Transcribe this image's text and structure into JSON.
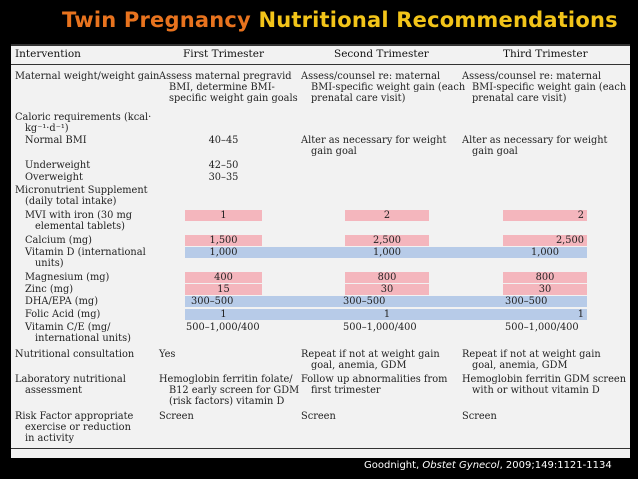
{
  "slide": {
    "title_part1": "Twin Pregnancy",
    "title_part2": "Nutritional Recommendations",
    "citation_author": "Goodnight,",
    "citation_journal": "Obstet Gynecol",
    "citation_ref": ", 2009;149:1121-1134"
  },
  "table": {
    "headers": [
      "Intervention",
      "First Trimester",
      "Second Trimester",
      "Third Trimester"
    ],
    "cells": {
      "mw_i1": "Maternal weight/weight gain",
      "mw_f1": "Assess maternal pregravid",
      "mw_f2": "BMI, determine BMI-",
      "mw_f3": "specific weight gain goals",
      "mw_s1": "Assess/counsel re: maternal",
      "mw_s2": "BMI-specific weight gain (each",
      "mw_s3": "prenatal care visit)",
      "mw_t1": "Assess/counsel re: maternal",
      "mw_t2": "BMI-specific weight gain (each",
      "mw_t3": "prenatal care visit)",
      "cr_i1": "Caloric requirements (kcal·",
      "cr_i2": "kg⁻¹·d⁻¹)",
      "nb_i": "Normal BMI",
      "nb_f": "40–45",
      "nb_s1": "Alter as necessary for weight",
      "nb_s2": "gain goal",
      "nb_t1": "Alter as necessary for weight",
      "nb_t2": "gain goal",
      "uw_i": "Underweight",
      "uw_f": "42–50",
      "ow_i": "Overweight",
      "ow_f": "30–35",
      "ms_i1": "Micronutrient Supplement",
      "ms_i2": "(daily total intake)",
      "mvi_i1": "MVI with iron (30 mg",
      "mvi_i2": "elemental tablets)",
      "mvi_f": "1",
      "mvi_s": "2",
      "mvi_t": "2",
      "ca_i": "Calcium (mg)",
      "ca_f": "1,500",
      "ca_s": "2,500",
      "ca_t": "2,500",
      "vd_i1": "Vitamin D (international",
      "vd_i2": "units)",
      "vd_f": "1,000",
      "vd_s": "1,000",
      "vd_t": "1,000",
      "mg_i": "Magnesium (mg)",
      "mg_f": "400",
      "mg_s": "800",
      "mg_t": "800",
      "zn_i": "Zinc (mg)",
      "zn_f": "15",
      "zn_s": "30",
      "zn_t": "30",
      "dha_i": "DHA/EPA (mg)",
      "dha_f": "300–500",
      "dha_s": "300–500",
      "dha_t": "300–500",
      "fa_i": "Folic Acid (mg)",
      "fa_f": "1",
      "fa_s": "1",
      "fa_t": "1",
      "vc_i1": "Vitamin C/E (mg/",
      "vc_i2": "international units)",
      "vc_f": "500–1,000/400",
      "vc_s": "500–1,000/400",
      "vc_t": "500–1,000/400",
      "nc_i": "Nutritional consultation",
      "nc_f": "Yes",
      "nc_s1": "Repeat if not at weight gain",
      "nc_s2": "goal, anemia, GDM",
      "nc_t1": "Repeat if not at weight gain",
      "nc_t2": "goal, anemia, GDM",
      "lab_i1": "Laboratory nutritional",
      "lab_i2": "assessment",
      "lab_f1": "Hemoglobin ferritin folate/",
      "lab_f2": "B12 early screen for GDM",
      "lab_f3": "(risk factors) vitamin D",
      "lab_s1": "Follow up abnormalities from",
      "lab_s2": "first trimester",
      "lab_t1": "Hemoglobin ferritin GDM screen",
      "lab_t2": "with or without vitamin D",
      "rf_i1": "Risk Factor appropriate",
      "rf_i2": "exercise or reduction",
      "rf_i3": "in activity",
      "rf_f": "Screen",
      "rf_s": "Screen",
      "rf_t": "Screen"
    }
  },
  "colors": {
    "title_part1": "#e8731e",
    "title_part2": "#f2c419",
    "highlight_pink": "#f4b6bd",
    "highlight_blue": "#b7cbe8"
  }
}
